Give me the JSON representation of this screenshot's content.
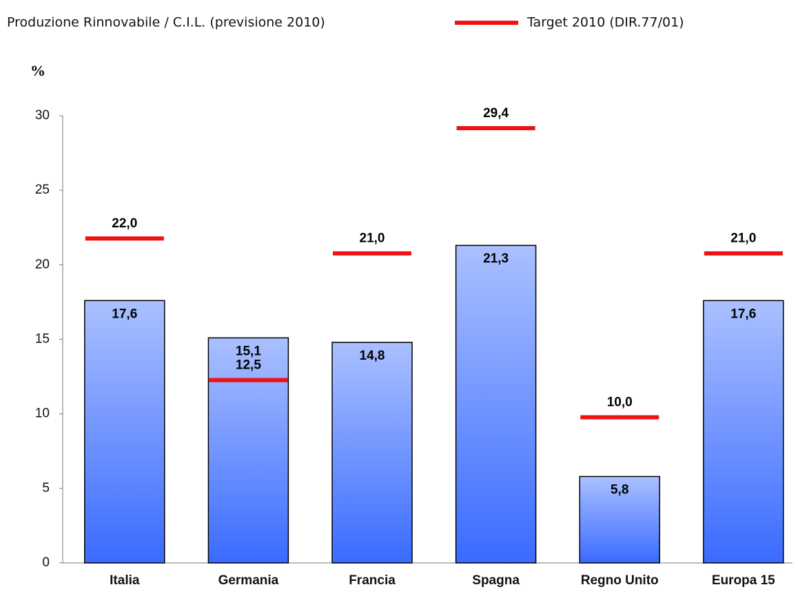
{
  "chart_data": {
    "type": "bar",
    "y_label": "%",
    "categories": [
      "Italia",
      "Germania",
      "Francia",
      "Spagna",
      "Regno Unito",
      "Europa 15"
    ],
    "series": [
      {
        "name": "Produzione Rinnovabile / C.I.L. (previsione 2010)",
        "type": "bar",
        "color": "#3a6bff",
        "values": [
          17.6,
          15.1,
          14.8,
          21.3,
          5.8,
          17.6
        ],
        "value_labels": [
          "17,6",
          "15,1",
          "14,8",
          "21,3",
          "5,8",
          "17,6"
        ]
      },
      {
        "name": "Target 2010 (DIR.77/01)",
        "type": "target",
        "color": "#ee1111",
        "values": [
          22.0,
          12.5,
          21.0,
          29.4,
          10.0,
          21.0
        ],
        "value_labels": [
          "22,0",
          "12,5",
          "21,0",
          "29,4",
          "10,0",
          "21,0"
        ]
      }
    ],
    "ylim": [
      0,
      30
    ],
    "yticks": [
      0,
      5,
      10,
      15,
      20,
      25,
      30
    ]
  }
}
